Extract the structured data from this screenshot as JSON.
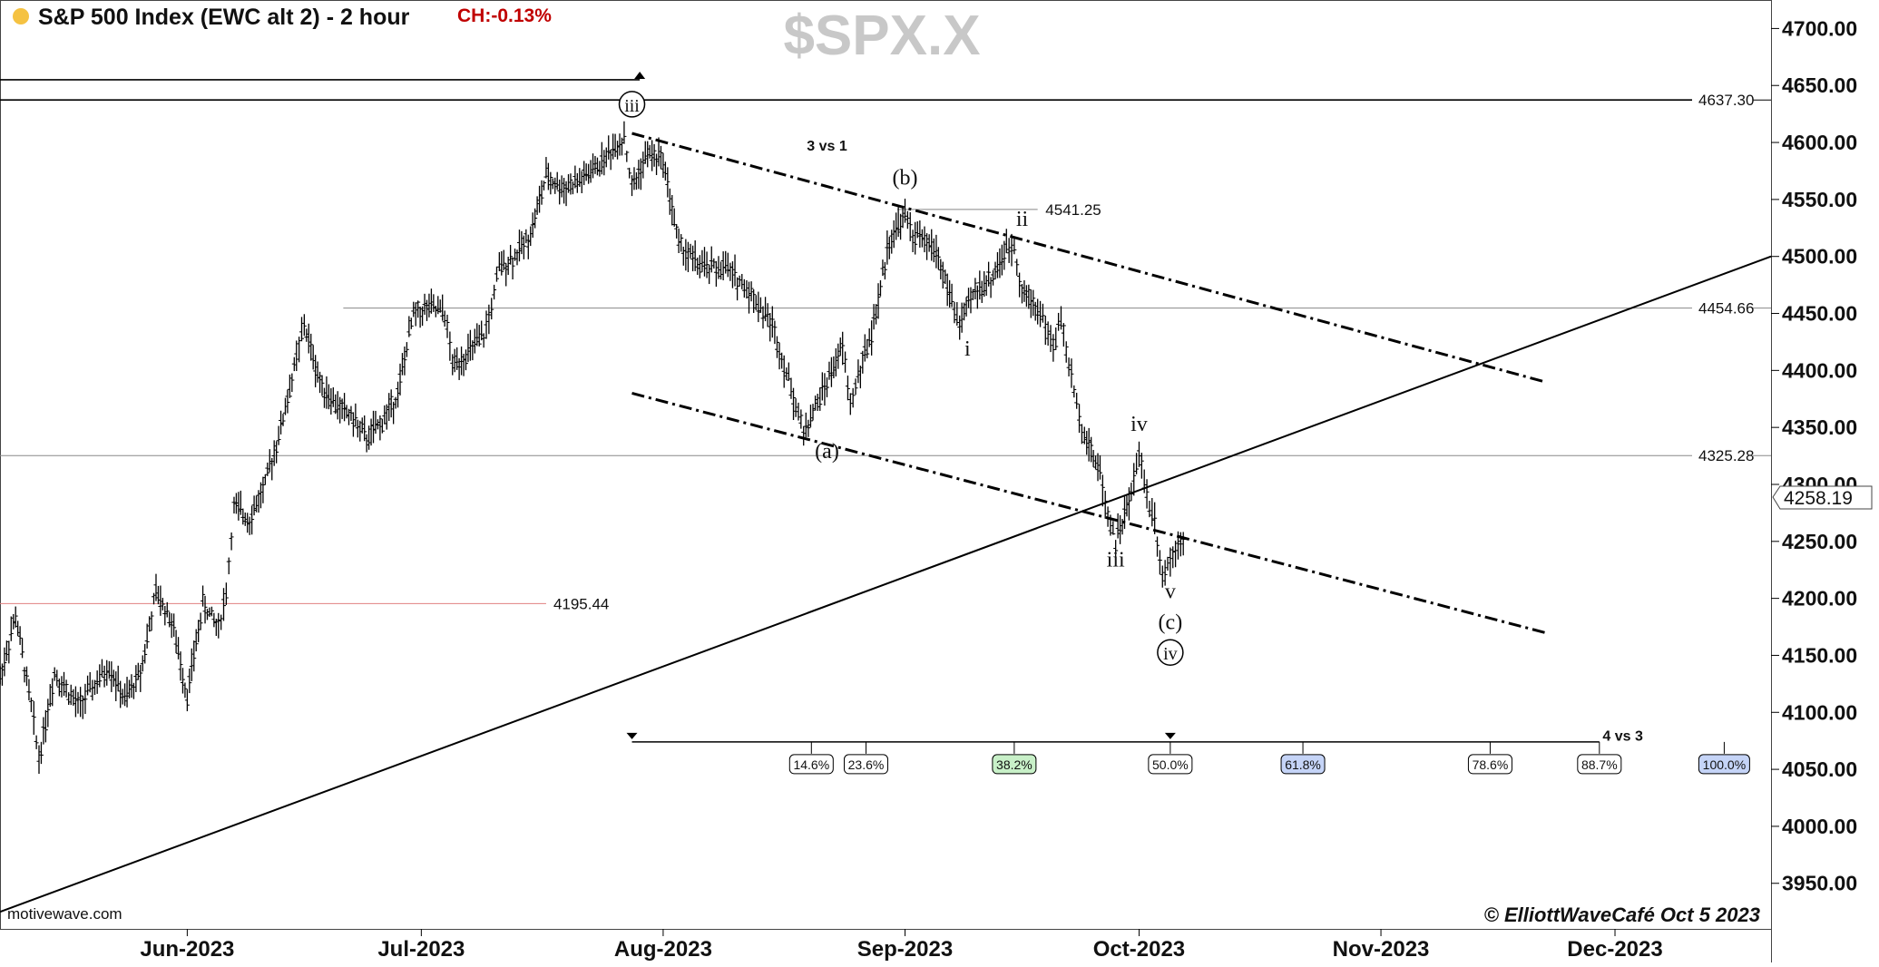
{
  "header": {
    "title": "S&P 500 Index (EWC alt 2) - 2 hour",
    "change": "CH:-0.13%",
    "symbol_watermark": "$SPX.X",
    "status_dot_color": "#f5c242"
  },
  "branding": {
    "source": "motivewave.com",
    "copyright": "© ElliottWaveCafé Oct 5 2023"
  },
  "chart_data": {
    "type": "bar",
    "bar_style": "OHLC",
    "timeframe": "2 hour",
    "title": "S&P 500 Index (EWC alt 2) - 2 hour",
    "y_axis": {
      "range": [
        3910,
        4725
      ],
      "ticks": [
        3950,
        4000,
        4050,
        4100,
        4150,
        4200,
        4250,
        4300,
        4350,
        4400,
        4450,
        4500,
        4550,
        4600,
        4650,
        4700
      ],
      "tick_labels": [
        "3950.00",
        "4000.00",
        "4050.00",
        "4100.00",
        "4150.00",
        "4200.00",
        "4250.00",
        "4300.00",
        "4350.00",
        "4400.00",
        "4450.00",
        "4500.00",
        "4550.00",
        "4600.00",
        "4650.00",
        "4700.00"
      ]
    },
    "x_axis": {
      "range": [
        "2023-05-08",
        "2023-12-21"
      ],
      "ticks": [
        {
          "date": "2023-06-01",
          "label": "Jun-2023"
        },
        {
          "date": "2023-07-01",
          "label": "Jul-2023"
        },
        {
          "date": "2023-08-01",
          "label": "Aug-2023"
        },
        {
          "date": "2023-09-01",
          "label": "Sep-2023"
        },
        {
          "date": "2023-10-01",
          "label": "Oct-2023"
        },
        {
          "date": "2023-11-01",
          "label": "Nov-2023"
        },
        {
          "date": "2023-12-01",
          "label": "Dec-2023"
        }
      ]
    },
    "price_path": [
      {
        "date": "2023-05-08",
        "price": 4130
      },
      {
        "date": "2023-05-10",
        "price": 4185
      },
      {
        "date": "2023-05-12",
        "price": 4105
      },
      {
        "date": "2023-05-13",
        "price": 4060
      },
      {
        "date": "2023-05-15",
        "price": 4135
      },
      {
        "date": "2023-05-18",
        "price": 4105
      },
      {
        "date": "2023-05-22",
        "price": 4140
      },
      {
        "date": "2023-05-24",
        "price": 4110
      },
      {
        "date": "2023-05-26",
        "price": 4135
      },
      {
        "date": "2023-05-28",
        "price": 4205
      },
      {
        "date": "2023-05-30",
        "price": 4180
      },
      {
        "date": "2023-06-01",
        "price": 4115
      },
      {
        "date": "2023-06-03",
        "price": 4195
      },
      {
        "date": "2023-06-05",
        "price": 4175
      },
      {
        "date": "2023-06-06",
        "price": 4205
      },
      {
        "date": "2023-06-07",
        "price": 4280
      },
      {
        "date": "2023-06-09",
        "price": 4270
      },
      {
        "date": "2023-06-11",
        "price": 4300
      },
      {
        "date": "2023-06-13",
        "price": 4350
      },
      {
        "date": "2023-06-15",
        "price": 4410
      },
      {
        "date": "2023-06-16",
        "price": 4440
      },
      {
        "date": "2023-06-18",
        "price": 4390
      },
      {
        "date": "2023-06-20",
        "price": 4370
      },
      {
        "date": "2023-06-22",
        "price": 4360
      },
      {
        "date": "2023-06-24",
        "price": 4340
      },
      {
        "date": "2023-06-26",
        "price": 4355
      },
      {
        "date": "2023-06-28",
        "price": 4380
      },
      {
        "date": "2023-06-30",
        "price": 4450
      },
      {
        "date": "2023-07-02",
        "price": 4455
      },
      {
        "date": "2023-07-04",
        "price": 4450
      },
      {
        "date": "2023-07-05",
        "price": 4405
      },
      {
        "date": "2023-07-07",
        "price": 4415
      },
      {
        "date": "2023-07-09",
        "price": 4430
      },
      {
        "date": "2023-07-10",
        "price": 4455
      },
      {
        "date": "2023-07-11",
        "price": 4490
      },
      {
        "date": "2023-07-13",
        "price": 4500
      },
      {
        "date": "2023-07-15",
        "price": 4520
      },
      {
        "date": "2023-07-17",
        "price": 4570
      },
      {
        "date": "2023-07-19",
        "price": 4560
      },
      {
        "date": "2023-07-21",
        "price": 4565
      },
      {
        "date": "2023-07-23",
        "price": 4575
      },
      {
        "date": "2023-07-25",
        "price": 4590
      },
      {
        "date": "2023-07-27",
        "price": 4605
      },
      {
        "date": "2023-07-28",
        "price": 4560
      },
      {
        "date": "2023-07-30",
        "price": 4590
      },
      {
        "date": "2023-08-01",
        "price": 4585
      },
      {
        "date": "2023-08-03",
        "price": 4510
      },
      {
        "date": "2023-08-06",
        "price": 4490
      },
      {
        "date": "2023-08-09",
        "price": 4490
      },
      {
        "date": "2023-08-12",
        "price": 4470
      },
      {
        "date": "2023-08-15",
        "price": 4440
      },
      {
        "date": "2023-08-18",
        "price": 4370
      },
      {
        "date": "2023-08-19",
        "price": 4345
      },
      {
        "date": "2023-08-22",
        "price": 4390
      },
      {
        "date": "2023-08-24",
        "price": 4420
      },
      {
        "date": "2023-08-25",
        "price": 4370
      },
      {
        "date": "2023-08-26",
        "price": 4395
      },
      {
        "date": "2023-08-28",
        "price": 4440
      },
      {
        "date": "2023-08-30",
        "price": 4515
      },
      {
        "date": "2023-09-01",
        "price": 4535
      },
      {
        "date": "2023-09-02",
        "price": 4520
      },
      {
        "date": "2023-09-05",
        "price": 4505
      },
      {
        "date": "2023-09-07",
        "price": 4460
      },
      {
        "date": "2023-09-08",
        "price": 4440
      },
      {
        "date": "2023-09-10",
        "price": 4470
      },
      {
        "date": "2023-09-12",
        "price": 4480
      },
      {
        "date": "2023-09-14",
        "price": 4505
      },
      {
        "date": "2023-09-15",
        "price": 4510
      },
      {
        "date": "2023-09-16",
        "price": 4470
      },
      {
        "date": "2023-09-18",
        "price": 4455
      },
      {
        "date": "2023-09-19",
        "price": 4440
      },
      {
        "date": "2023-09-20",
        "price": 4420
      },
      {
        "date": "2023-09-21",
        "price": 4445
      },
      {
        "date": "2023-09-22",
        "price": 4405
      },
      {
        "date": "2023-09-23",
        "price": 4370
      },
      {
        "date": "2023-09-24",
        "price": 4345
      },
      {
        "date": "2023-09-26",
        "price": 4310
      },
      {
        "date": "2023-09-27",
        "price": 4275
      },
      {
        "date": "2023-09-28",
        "price": 4250
      },
      {
        "date": "2023-09-30",
        "price": 4290
      },
      {
        "date": "2023-10-01",
        "price": 4330
      },
      {
        "date": "2023-10-02",
        "price": 4290
      },
      {
        "date": "2023-10-03",
        "price": 4270
      },
      {
        "date": "2023-10-04",
        "price": 4220
      },
      {
        "date": "2023-10-05",
        "price": 4235
      },
      {
        "date": "2023-10-06",
        "price": 4250
      },
      {
        "date": "2023-10-07",
        "price": 4258
      }
    ],
    "last_price": "4258.19",
    "horizontal_levels": [
      {
        "value": 4637.3,
        "label": "4637.30",
        "from": "2023-05-08",
        "color": "#000000"
      },
      {
        "value": 4454.66,
        "label": "4454.66",
        "from": "2023-06-21",
        "color": "#888888"
      },
      {
        "value": 4325.28,
        "label": "4325.28",
        "from": "2023-05-08",
        "color": "#888888"
      },
      {
        "value": 4195.44,
        "label": "4195.44",
        "from": "2023-05-08",
        "to": "2023-07-17",
        "color": "#e08080"
      }
    ],
    "extra_level": {
      "value": 4655,
      "from": "2023-05-08",
      "to": "2023-07-29",
      "color": "#000000"
    },
    "level_4541": {
      "value": 4541.25,
      "label": "4541.25",
      "from": "2023-08-31",
      "to": "2023-09-18",
      "label_date": "2023-09-19"
    },
    "trendlines": [
      {
        "name": "rising-support",
        "style": "solid",
        "points": [
          {
            "date": "2023-05-08",
            "price": 3925
          },
          {
            "date": "2023-12-21",
            "price": 4500
          }
        ]
      },
      {
        "name": "upper-channel",
        "style": "dashdot",
        "points": [
          {
            "date": "2023-07-28",
            "price": 4608
          },
          {
            "date": "2023-11-22",
            "price": 4390
          }
        ]
      },
      {
        "name": "lower-channel",
        "style": "dashdot",
        "points": [
          {
            "date": "2023-07-28",
            "price": 4380
          },
          {
            "date": "2023-11-22",
            "price": 4170
          }
        ]
      }
    ],
    "wave_labels": [
      {
        "text": "iii",
        "date": "2023-07-28",
        "price": 4628,
        "circled": true
      },
      {
        "text": "(b)",
        "date": "2023-09-01",
        "price": 4563,
        "circled": false
      },
      {
        "text": "ii",
        "date": "2023-09-16",
        "price": 4527,
        "circled": false
      },
      {
        "text": "i",
        "date": "2023-09-09",
        "price": 4413,
        "circled": false
      },
      {
        "text": "(a)",
        "date": "2023-08-22",
        "price": 4323,
        "circled": false
      },
      {
        "text": "iv",
        "date": "2023-10-01",
        "price": 4347,
        "circled": false
      },
      {
        "text": "iii",
        "date": "2023-09-28",
        "price": 4228,
        "circled": false
      },
      {
        "text": "v",
        "date": "2023-10-05",
        "price": 4200,
        "circled": false
      },
      {
        "text": "(c)",
        "date": "2023-10-05",
        "price": 4173,
        "circled": false
      },
      {
        "text": "iv",
        "date": "2023-10-05",
        "price": 4147,
        "circled": true
      }
    ],
    "annotations": [
      {
        "text": "3 vs 1",
        "date": "2023-08-22",
        "price": 4593
      },
      {
        "text": "4 vs 3",
        "date": "2023-12-02",
        "price": 4075
      }
    ],
    "fibonacci_timeline": {
      "y_price": 4082,
      "start_date": "2023-07-28",
      "end_date": "2023-11-29",
      "markers": [
        "2023-07-28",
        "2023-10-05"
      ],
      "levels": [
        {
          "label": "14.6%",
          "date": "2023-08-20",
          "bg": "#ffffff"
        },
        {
          "label": "23.6%",
          "date": "2023-08-27",
          "bg": "#ffffff"
        },
        {
          "label": "38.2%",
          "date": "2023-09-15",
          "bg": "#c8f0c8"
        },
        {
          "label": "50.0%",
          "date": "2023-10-05",
          "bg": "#ffffff"
        },
        {
          "label": "61.8%",
          "date": "2023-10-22",
          "bg": "#c5d4f7"
        },
        {
          "label": "78.6%",
          "date": "2023-11-15",
          "bg": "#ffffff"
        },
        {
          "label": "88.7%",
          "date": "2023-11-29",
          "bg": "#ffffff"
        },
        {
          "label": "100.0%",
          "date": "2023-12-15",
          "bg": "#c5d4f7"
        }
      ]
    },
    "grid": false,
    "legend": "none"
  }
}
